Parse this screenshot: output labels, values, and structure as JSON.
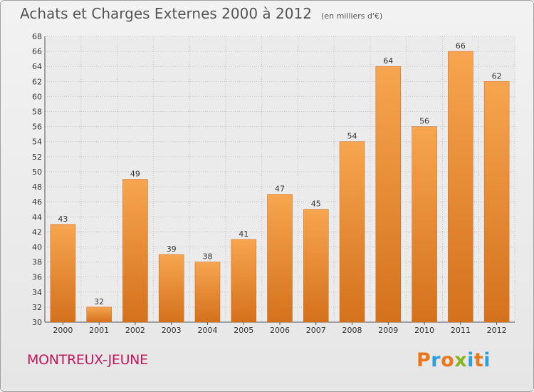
{
  "header": {
    "title": "Achats et Charges Externes 2000 à 2012",
    "unit": "(en milliers d'€)"
  },
  "footer": {
    "commune": "MONTREUX-JEUNE",
    "logo_text": "Proxiti"
  },
  "colors": {
    "bar_top": "#f7a550",
    "bar_bottom": "#d4711c",
    "title": "#555555",
    "commune": "#c0185a",
    "logo_letters": [
      "#e8771e",
      "#2e9fd8",
      "#e8771e",
      "#88b422",
      "#2e9fd8",
      "#e8771e",
      "#2e9fd8"
    ]
  },
  "chart_data": {
    "type": "bar",
    "title": "Achats et Charges Externes 2000 à 2012",
    "categories": [
      "2000",
      "2001",
      "2002",
      "2003",
      "2004",
      "2005",
      "2006",
      "2007",
      "2008",
      "2009",
      "2010",
      "2011",
      "2012"
    ],
    "values": [
      43,
      32,
      49,
      39,
      38,
      41,
      47,
      45,
      54,
      64,
      56,
      66,
      62
    ],
    "ylim": [
      30,
      68
    ],
    "yticks": [
      30,
      32,
      34,
      36,
      38,
      40,
      42,
      44,
      46,
      48,
      50,
      52,
      54,
      56,
      58,
      60,
      62,
      64,
      66,
      68
    ],
    "grid": true,
    "data_labels": true
  }
}
